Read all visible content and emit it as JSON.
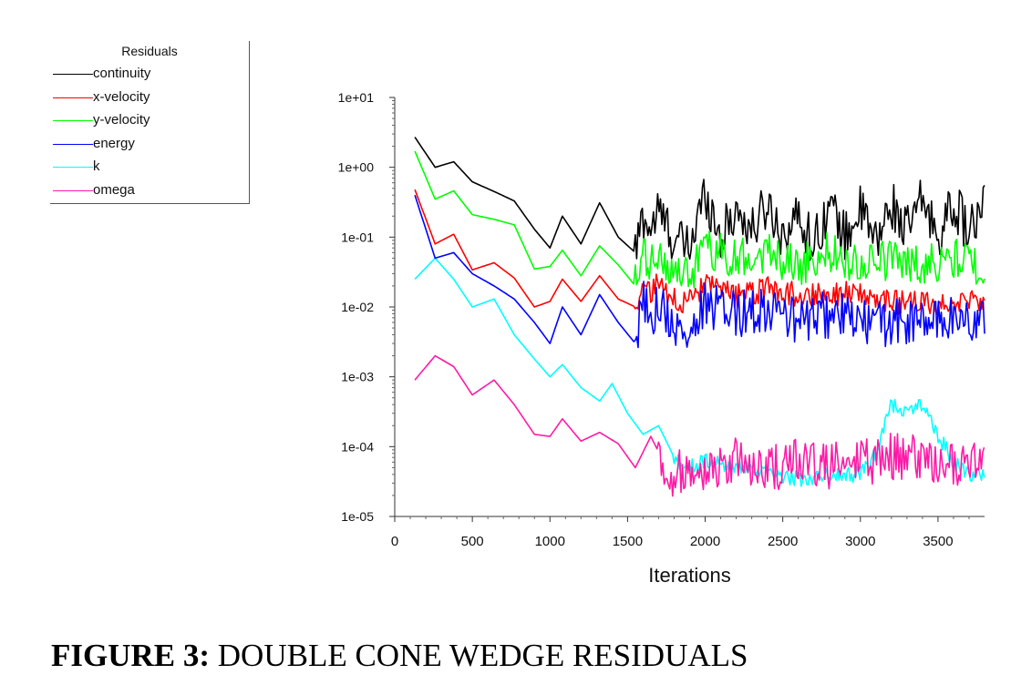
{
  "legend": {
    "title": "Residuals"
  },
  "chart_data": {
    "type": "line",
    "xlabel": "Iterations",
    "ylabel": "",
    "xlim": [
      0,
      3800
    ],
    "ylim": [
      1e-05,
      10
    ],
    "yscale": "log",
    "legend_placement": "top-left (outside plot)",
    "x_ticks": [
      0,
      500,
      1000,
      1500,
      2000,
      2500,
      3000,
      3500
    ],
    "y_ticks": [
      10,
      1,
      0.1,
      0.01,
      0.001,
      0.0001,
      1e-05
    ],
    "x_tick_labels": [
      "0",
      "500",
      "1000",
      "1500",
      "2000",
      "2500",
      "3000",
      "3500"
    ],
    "y_tick_labels": [
      "1e+01",
      "1e+00",
      "1e-01",
      "1e-02",
      "1e-03",
      "1e-04",
      "1e-05"
    ],
    "series": [
      {
        "name": "continuity",
        "color": "#000000",
        "points": [
          [
            130,
            2.7
          ],
          [
            260,
            1.0
          ],
          [
            380,
            1.2
          ],
          [
            500,
            0.62
          ],
          [
            640,
            0.45
          ],
          [
            770,
            0.33
          ],
          [
            900,
            0.13
          ],
          [
            1000,
            0.07
          ],
          [
            1080,
            0.2
          ],
          [
            1200,
            0.08
          ],
          [
            1320,
            0.31
          ],
          [
            1440,
            0.1
          ],
          [
            1550,
            0.06
          ],
          [
            1600,
            0.2
          ],
          [
            1650,
            0.13
          ],
          [
            1700,
            0.24
          ],
          [
            1800,
            0.09
          ],
          [
            1900,
            0.07
          ],
          [
            2000,
            0.45
          ],
          [
            2100,
            0.1
          ],
          [
            2200,
            0.25
          ],
          [
            2300,
            0.12
          ],
          [
            2400,
            0.3
          ],
          [
            2500,
            0.11
          ],
          [
            2600,
            0.2
          ],
          [
            2700,
            0.08
          ],
          [
            2800,
            0.3
          ],
          [
            2900,
            0.1
          ],
          [
            3000,
            0.25
          ],
          [
            3100,
            0.08
          ],
          [
            3200,
            0.3
          ],
          [
            3300,
            0.12
          ],
          [
            3400,
            0.35
          ],
          [
            3500,
            0.1
          ],
          [
            3600,
            0.3
          ],
          [
            3700,
            0.12
          ],
          [
            3800,
            0.25
          ]
        ],
        "noise_start": 1550,
        "noise_amp": 0.35
      },
      {
        "name": "x-velocity",
        "color": "#ff0000",
        "points": [
          [
            130,
            0.48
          ],
          [
            260,
            0.08
          ],
          [
            380,
            0.11
          ],
          [
            500,
            0.034
          ],
          [
            640,
            0.043
          ],
          [
            770,
            0.026
          ],
          [
            900,
            0.01
          ],
          [
            1000,
            0.012
          ],
          [
            1080,
            0.025
          ],
          [
            1200,
            0.012
          ],
          [
            1320,
            0.028
          ],
          [
            1440,
            0.013
          ],
          [
            1550,
            0.01
          ],
          [
            1600,
            0.02
          ],
          [
            1650,
            0.015
          ],
          [
            1700,
            0.022
          ],
          [
            1800,
            0.013
          ],
          [
            1900,
            0.012
          ],
          [
            2000,
            0.02
          ],
          [
            2200,
            0.014
          ],
          [
            2400,
            0.018
          ],
          [
            2600,
            0.015
          ],
          [
            2800,
            0.016
          ],
          [
            3000,
            0.015
          ],
          [
            3200,
            0.012
          ],
          [
            3400,
            0.011
          ],
          [
            3600,
            0.012
          ],
          [
            3800,
            0.011
          ]
        ],
        "noise_start": 1550,
        "noise_amp": 0.18
      },
      {
        "name": "y-velocity",
        "color": "#00ff00",
        "points": [
          [
            130,
            1.7
          ],
          [
            260,
            0.35
          ],
          [
            380,
            0.46
          ],
          [
            500,
            0.21
          ],
          [
            640,
            0.18
          ],
          [
            770,
            0.15
          ],
          [
            900,
            0.035
          ],
          [
            1000,
            0.038
          ],
          [
            1080,
            0.065
          ],
          [
            1200,
            0.028
          ],
          [
            1320,
            0.075
          ],
          [
            1440,
            0.04
          ],
          [
            1550,
            0.02
          ],
          [
            1600,
            0.05
          ],
          [
            1650,
            0.04
          ],
          [
            1700,
            0.06
          ],
          [
            1800,
            0.03
          ],
          [
            1900,
            0.025
          ],
          [
            2000,
            0.07
          ],
          [
            2200,
            0.05
          ],
          [
            2400,
            0.06
          ],
          [
            2600,
            0.04
          ],
          [
            2800,
            0.06
          ],
          [
            3000,
            0.04
          ],
          [
            3200,
            0.05
          ],
          [
            3400,
            0.04
          ],
          [
            3600,
            0.05
          ],
          [
            3800,
            0.04
          ]
        ],
        "noise_start": 1550,
        "noise_amp": 0.3
      },
      {
        "name": "energy",
        "color": "#0000ff",
        "points": [
          [
            130,
            0.4
          ],
          [
            260,
            0.05
          ],
          [
            380,
            0.06
          ],
          [
            500,
            0.03
          ],
          [
            640,
            0.02
          ],
          [
            770,
            0.013
          ],
          [
            900,
            0.006
          ],
          [
            1000,
            0.003
          ],
          [
            1080,
            0.01
          ],
          [
            1200,
            0.004
          ],
          [
            1320,
            0.015
          ],
          [
            1440,
            0.006
          ],
          [
            1550,
            0.003
          ],
          [
            1600,
            0.011
          ],
          [
            1650,
            0.008
          ],
          [
            1700,
            0.012
          ],
          [
            1800,
            0.005
          ],
          [
            1900,
            0.004
          ],
          [
            2000,
            0.01
          ],
          [
            2200,
            0.008
          ],
          [
            2400,
            0.01
          ],
          [
            2600,
            0.006
          ],
          [
            2800,
            0.008
          ],
          [
            3000,
            0.006
          ],
          [
            3200,
            0.006
          ],
          [
            3400,
            0.006
          ],
          [
            3600,
            0.007
          ],
          [
            3800,
            0.006
          ]
        ],
        "noise_start": 1550,
        "noise_amp": 0.35
      },
      {
        "name": "k",
        "color": "#00ffff",
        "points": [
          [
            130,
            0.025
          ],
          [
            260,
            0.05
          ],
          [
            380,
            0.025
          ],
          [
            500,
            0.01
          ],
          [
            640,
            0.013
          ],
          [
            770,
            0.004
          ],
          [
            900,
            0.0018
          ],
          [
            1000,
            0.001
          ],
          [
            1080,
            0.0015
          ],
          [
            1200,
            0.0007
          ],
          [
            1320,
            0.00045
          ],
          [
            1400,
            0.0008
          ],
          [
            1500,
            0.0003
          ],
          [
            1600,
            0.00015
          ],
          [
            1700,
            0.0002
          ],
          [
            1800,
            7e-05
          ],
          [
            1900,
            5e-05
          ],
          [
            2000,
            6e-05
          ],
          [
            2200,
            5e-05
          ],
          [
            2400,
            4e-05
          ],
          [
            2600,
            3.5e-05
          ],
          [
            2800,
            4e-05
          ],
          [
            3000,
            4e-05
          ],
          [
            3100,
            8e-05
          ],
          [
            3200,
            0.0004
          ],
          [
            3300,
            0.00035
          ],
          [
            3400,
            0.0004
          ],
          [
            3500,
            0.00015
          ],
          [
            3600,
            6e-05
          ],
          [
            3700,
            4e-05
          ],
          [
            3800,
            4e-05
          ]
        ],
        "noise_start": 1800,
        "noise_amp": 0.12
      },
      {
        "name": "omega",
        "color": "#ff1aa6",
        "points": [
          [
            130,
            0.0009
          ],
          [
            260,
            0.002
          ],
          [
            380,
            0.0014
          ],
          [
            500,
            0.00055
          ],
          [
            640,
            0.0009
          ],
          [
            770,
            0.0004
          ],
          [
            900,
            0.00015
          ],
          [
            1000,
            0.00014
          ],
          [
            1080,
            0.00025
          ],
          [
            1200,
            0.00012
          ],
          [
            1320,
            0.00016
          ],
          [
            1440,
            0.00011
          ],
          [
            1550,
            5e-05
          ],
          [
            1650,
            0.00014
          ],
          [
            1750,
            5e-05
          ],
          [
            1800,
            4e-05
          ],
          [
            1900,
            6e-05
          ],
          [
            2000,
            5e-05
          ],
          [
            2200,
            6e-05
          ],
          [
            2400,
            5e-05
          ],
          [
            2600,
            6e-05
          ],
          [
            2800,
            5e-05
          ],
          [
            3000,
            6e-05
          ],
          [
            3200,
            7e-05
          ],
          [
            3400,
            7e-05
          ],
          [
            3600,
            5e-05
          ],
          [
            3800,
            5e-05
          ]
        ],
        "noise_start": 1700,
        "noise_amp": 0.35
      }
    ]
  },
  "caption": {
    "label": "FIGURE 3:",
    "text": " DOUBLE CONE WEDGE RESIDUALS"
  }
}
